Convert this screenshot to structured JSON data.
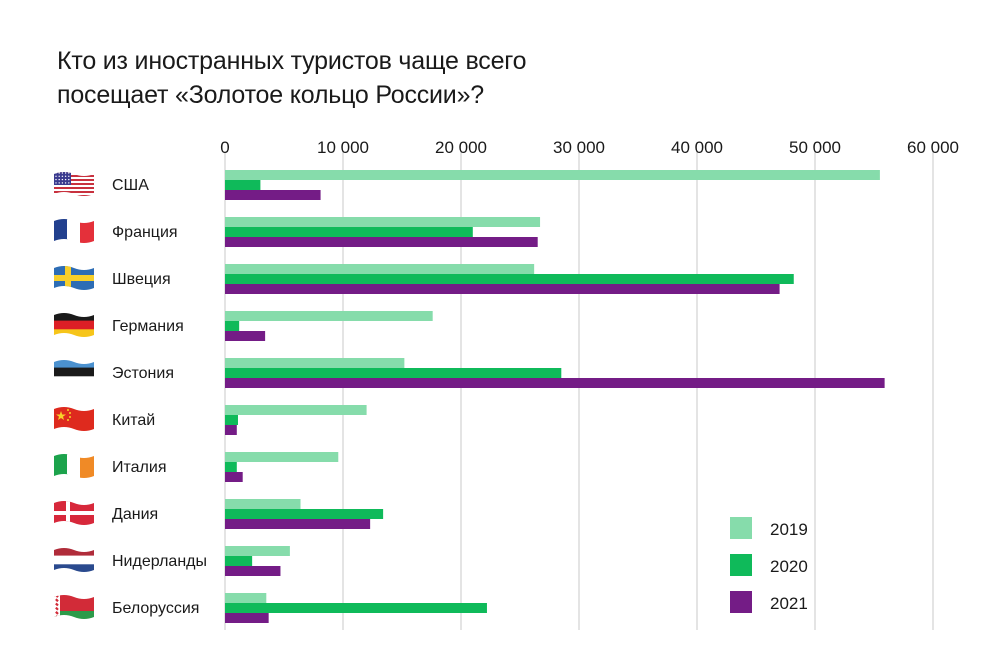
{
  "chart_data": {
    "type": "bar",
    "orientation": "horizontal",
    "title": [
      "Кто из иностранных туристов чаще всего",
      "посещает «Золотое кольцо России»?"
    ],
    "xlim": [
      0,
      60000
    ],
    "ticks": [
      0,
      10000,
      20000,
      30000,
      40000,
      50000,
      60000
    ],
    "tick_labels": [
      "0",
      "10 000",
      "20 000",
      "30 000",
      "40 000",
      "50 000",
      "60 000"
    ],
    "grid": true,
    "legend_position": "bottom-right",
    "categories": [
      "США",
      "Франция",
      "Швеция",
      "Германия",
      "Эстония",
      "Китай",
      "Италия",
      "Дания",
      "Нидерланды",
      "Белоруссия"
    ],
    "flags": [
      "usa-flag",
      "france-flag",
      "sweden-flag",
      "germany-flag",
      "estonia-flag",
      "china-flag",
      "italy-flag",
      "denmark-flag",
      "netherlands-flag",
      "belarus-flag"
    ],
    "series": [
      {
        "name": "2019",
        "color": "#86dcab",
        "values": [
          55500,
          26700,
          26200,
          17600,
          15200,
          12000,
          9600,
          6400,
          5500,
          3500
        ]
      },
      {
        "name": "2020",
        "color": "#0fba5a",
        "values": [
          3000,
          21000,
          48200,
          1200,
          28500,
          1100,
          1000,
          13400,
          2300,
          22200
        ]
      },
      {
        "name": "2021",
        "color": "#741c86",
        "values": [
          8100,
          26500,
          47000,
          3400,
          55900,
          1000,
          1500,
          12300,
          4700,
          3700
        ]
      }
    ]
  }
}
